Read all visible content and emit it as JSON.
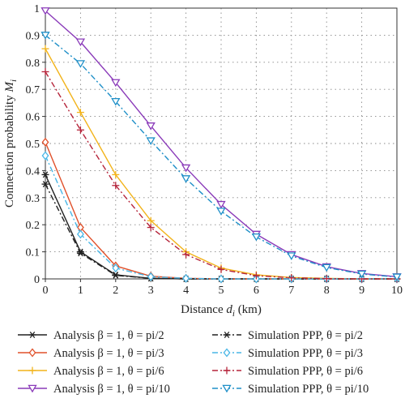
{
  "chart_data": {
    "type": "line",
    "title": "",
    "xlabel": "Distance d_i (km)",
    "xlabel_parts": {
      "main": "Distance ",
      "var": "d",
      "sub": "i",
      "unit": " (km)"
    },
    "ylabel": "Connection probability M_i",
    "ylabel_parts": {
      "main": "Connection probability ",
      "var": "M",
      "sub": "i"
    },
    "xlim": [
      0,
      10
    ],
    "ylim": [
      0,
      1
    ],
    "xticks": [
      "0",
      "1",
      "2",
      "3",
      "4",
      "5",
      "6",
      "7",
      "8",
      "9",
      "10"
    ],
    "yticks": [
      "0",
      "0.1",
      "0.2",
      "0.3",
      "0.4",
      "0.5",
      "0.6",
      "0.7",
      "0.8",
      "0.9",
      "1"
    ],
    "grid": true,
    "legend_placement": "bottom",
    "x": [
      0,
      1,
      2,
      3,
      4,
      5,
      6,
      7,
      8,
      9,
      10
    ],
    "series": [
      {
        "name": "Analysis β = 1, θ = pi/2",
        "color": "#222222",
        "dash": "solid",
        "marker": "star",
        "values": [
          0.385,
          0.1,
          0.015,
          0.002,
          0,
          0,
          0,
          0,
          0,
          0,
          0
        ]
      },
      {
        "name": "Analysis β = 1, θ = pi/3",
        "color": "#e0502a",
        "dash": "solid",
        "marker": "diamond",
        "values": [
          0.505,
          0.19,
          0.048,
          0.01,
          0.002,
          0,
          0,
          0,
          0,
          0,
          0
        ]
      },
      {
        "name": "Analysis β = 1, θ = pi/6",
        "color": "#f2b31a",
        "dash": "solid",
        "marker": "plus",
        "values": [
          0.85,
          0.615,
          0.385,
          0.215,
          0.1,
          0.04,
          0.015,
          0.005,
          0.002,
          0,
          0
        ]
      },
      {
        "name": "Analysis β = 1, θ = pi/10",
        "color": "#8a3ab9",
        "dash": "solid",
        "marker": "triangle-down",
        "values": [
          0.99,
          0.875,
          0.725,
          0.565,
          0.41,
          0.275,
          0.165,
          0.09,
          0.045,
          0.02,
          0.008
        ]
      },
      {
        "name": "Simulation PPP, θ = pi/2",
        "color": "#222222",
        "dash": "dashdot",
        "marker": "star",
        "values": [
          0.35,
          0.095,
          0.013,
          0.002,
          0,
          0,
          0,
          0,
          0,
          0,
          0
        ]
      },
      {
        "name": "Simulation PPP, θ = pi/3",
        "color": "#49b6e6",
        "dash": "dashdot",
        "marker": "diamond-open",
        "values": [
          0.455,
          0.165,
          0.04,
          0.008,
          0.002,
          0,
          0,
          0,
          0,
          0,
          0
        ]
      },
      {
        "name": "Simulation PPP, θ = pi/6",
        "color": "#b5243a",
        "dash": "dashdot",
        "marker": "plus",
        "values": [
          0.765,
          0.55,
          0.345,
          0.19,
          0.09,
          0.035,
          0.012,
          0.004,
          0.001,
          0,
          0
        ]
      },
      {
        "name": "Simulation PPP, θ = pi/10",
        "color": "#1e8fc8",
        "dash": "dashdot",
        "marker": "triangle-down",
        "values": [
          0.9,
          0.795,
          0.655,
          0.51,
          0.37,
          0.25,
          0.155,
          0.085,
          0.042,
          0.018,
          0.007
        ]
      }
    ]
  }
}
